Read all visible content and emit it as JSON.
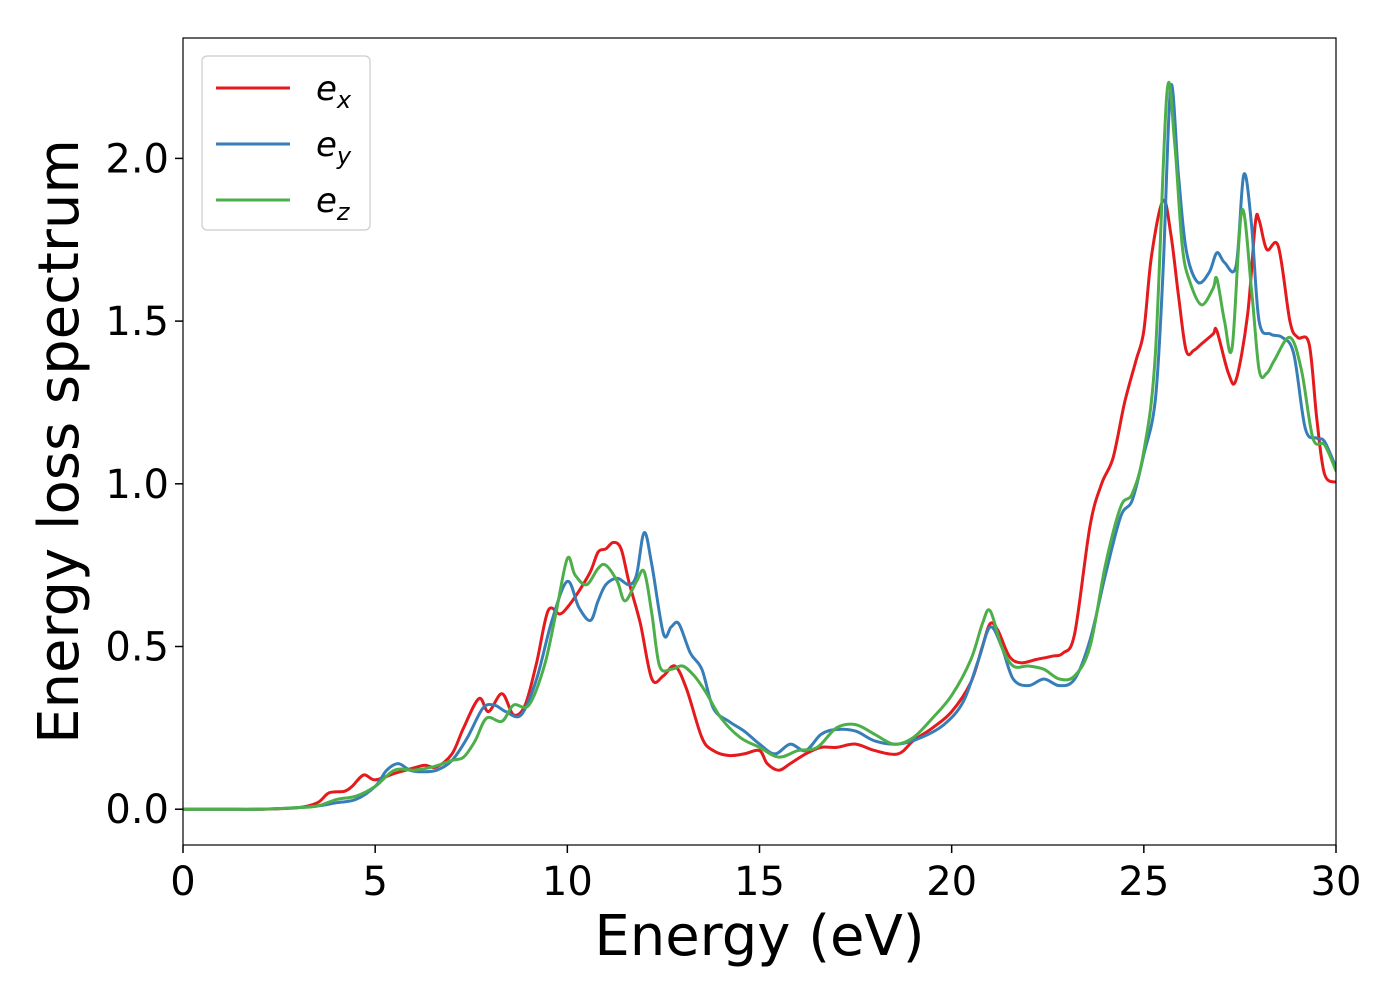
{
  "chart_data": {
    "type": "line",
    "xlabel": "Energy (eV)",
    "ylabel": "Energy loss spectrum",
    "xlim": [
      0,
      30
    ],
    "ylim": [
      -0.11,
      2.37
    ],
    "xticks": [
      0,
      5,
      10,
      15,
      20,
      25,
      30
    ],
    "xtick_labels": [
      "0",
      "5",
      "10",
      "15",
      "20",
      "25",
      "30"
    ],
    "yticks": [
      0.0,
      0.5,
      1.0,
      1.5,
      2.0
    ],
    "ytick_labels": [
      "0.0",
      "0.5",
      "1.0",
      "1.5",
      "2.0"
    ],
    "grid": false,
    "legend_position": "top-left",
    "series": [
      {
        "name": "e_x",
        "label_base": "e",
        "label_sub": "x",
        "color": "#e41a1c",
        "x": [
          0,
          1,
          2,
          3,
          3.5,
          3.8,
          4.2,
          4.4,
          4.7,
          5.0,
          5.5,
          5.8,
          6.1,
          6.3,
          6.6,
          7.0,
          7.3,
          7.7,
          7.95,
          8.3,
          8.6,
          8.9,
          9.2,
          9.5,
          9.8,
          10.0,
          10.3,
          10.6,
          10.8,
          11.0,
          11.2,
          11.4,
          11.6,
          11.9,
          12.2,
          12.5,
          12.8,
          13.1,
          13.5,
          13.8,
          14.2,
          14.6,
          15.0,
          15.2,
          15.5,
          15.8,
          16.2,
          16.6,
          17.0,
          17.5,
          18.0,
          18.6,
          19.0,
          19.5,
          20.0,
          20.5,
          20.8,
          21.0,
          21.2,
          21.5,
          21.8,
          22.2,
          22.6,
          22.9,
          23.2,
          23.6,
          23.9,
          24.2,
          24.5,
          24.8,
          25.0,
          25.2,
          25.5,
          25.7,
          25.9,
          26.1,
          26.3,
          26.5,
          26.8,
          26.9,
          27.2,
          27.4,
          27.7,
          27.9,
          28.0,
          28.2,
          28.5,
          28.8,
          29.0,
          29.3,
          29.5,
          29.7,
          30.0
        ],
        "y": [
          0.0,
          0.0,
          0.0,
          0.005,
          0.02,
          0.05,
          0.055,
          0.07,
          0.105,
          0.09,
          0.11,
          0.12,
          0.13,
          0.135,
          0.13,
          0.17,
          0.25,
          0.34,
          0.3,
          0.355,
          0.29,
          0.32,
          0.45,
          0.61,
          0.6,
          0.62,
          0.67,
          0.73,
          0.79,
          0.8,
          0.82,
          0.8,
          0.7,
          0.57,
          0.4,
          0.41,
          0.44,
          0.37,
          0.22,
          0.18,
          0.165,
          0.17,
          0.18,
          0.14,
          0.12,
          0.14,
          0.17,
          0.19,
          0.19,
          0.2,
          0.18,
          0.17,
          0.21,
          0.25,
          0.3,
          0.39,
          0.5,
          0.57,
          0.55,
          0.47,
          0.45,
          0.46,
          0.47,
          0.48,
          0.54,
          0.87,
          1.0,
          1.08,
          1.25,
          1.38,
          1.47,
          1.7,
          1.87,
          1.77,
          1.58,
          1.41,
          1.41,
          1.43,
          1.46,
          1.47,
          1.34,
          1.32,
          1.52,
          1.8,
          1.81,
          1.72,
          1.73,
          1.5,
          1.45,
          1.43,
          1.2,
          1.03,
          1.005
        ]
      },
      {
        "name": "e_y",
        "label_base": "e",
        "label_sub": "y",
        "color": "#377eb8",
        "x": [
          0,
          1,
          2,
          3,
          3.5,
          4.0,
          4.5,
          5.0,
          5.3,
          5.6,
          5.9,
          6.2,
          6.6,
          7.0,
          7.4,
          7.8,
          8.1,
          8.4,
          8.8,
          9.2,
          9.6,
          10.0,
          10.3,
          10.6,
          10.8,
          11.0,
          11.3,
          11.6,
          11.8,
          12.0,
          12.2,
          12.5,
          12.7,
          12.9,
          13.2,
          13.5,
          13.8,
          14.2,
          14.6,
          15.0,
          15.4,
          15.8,
          16.2,
          16.6,
          17.0,
          17.5,
          18.0,
          18.6,
          19.2,
          19.8,
          20.3,
          20.7,
          21.0,
          21.3,
          21.6,
          22.0,
          22.4,
          22.8,
          23.2,
          23.6,
          24.0,
          24.4,
          24.7,
          25.0,
          25.3,
          25.5,
          25.7,
          25.9,
          26.1,
          26.4,
          26.7,
          26.9,
          27.1,
          27.4,
          27.6,
          27.8,
          28.0,
          28.3,
          28.6,
          28.9,
          29.2,
          29.5,
          29.7,
          30.0
        ],
        "y": [
          0.0,
          0.0,
          0.0,
          0.005,
          0.01,
          0.02,
          0.03,
          0.07,
          0.12,
          0.14,
          0.12,
          0.115,
          0.12,
          0.15,
          0.22,
          0.31,
          0.32,
          0.3,
          0.29,
          0.4,
          0.58,
          0.7,
          0.62,
          0.58,
          0.64,
          0.69,
          0.71,
          0.69,
          0.72,
          0.85,
          0.75,
          0.54,
          0.56,
          0.57,
          0.48,
          0.43,
          0.31,
          0.27,
          0.24,
          0.2,
          0.17,
          0.2,
          0.18,
          0.23,
          0.245,
          0.24,
          0.21,
          0.2,
          0.22,
          0.26,
          0.33,
          0.46,
          0.56,
          0.5,
          0.4,
          0.38,
          0.4,
          0.38,
          0.4,
          0.52,
          0.72,
          0.9,
          0.95,
          1.09,
          1.26,
          1.65,
          2.22,
          1.95,
          1.72,
          1.62,
          1.65,
          1.71,
          1.68,
          1.67,
          1.95,
          1.8,
          1.5,
          1.46,
          1.45,
          1.4,
          1.17,
          1.14,
          1.13,
          1.05
        ]
      },
      {
        "name": "e_z",
        "label_base": "e",
        "label_sub": "z",
        "color": "#4daf4a",
        "x": [
          0,
          1,
          2,
          3,
          3.5,
          4.0,
          4.5,
          5.0,
          5.5,
          6.0,
          6.5,
          7.0,
          7.3,
          7.6,
          7.9,
          8.3,
          8.6,
          9.0,
          9.4,
          9.7,
          10.0,
          10.2,
          10.5,
          10.8,
          11.0,
          11.3,
          11.5,
          11.8,
          12.0,
          12.2,
          12.4,
          12.7,
          13.0,
          13.3,
          13.6,
          14.0,
          14.5,
          15.0,
          15.5,
          16.0,
          16.5,
          17.0,
          17.5,
          18.0,
          18.5,
          19.0,
          19.5,
          20.0,
          20.5,
          20.8,
          21.0,
          21.3,
          21.6,
          22.0,
          22.4,
          22.8,
          23.2,
          23.6,
          24.0,
          24.4,
          24.7,
          25.0,
          25.3,
          25.6,
          25.8,
          26.0,
          26.2,
          26.5,
          26.8,
          26.9,
          27.1,
          27.3,
          27.55,
          27.8,
          28.0,
          28.2,
          28.4,
          28.8,
          29.1,
          29.4,
          29.7,
          30.0
        ],
        "y": [
          0.0,
          0.0,
          0.0,
          0.005,
          0.01,
          0.03,
          0.04,
          0.07,
          0.12,
          0.12,
          0.13,
          0.15,
          0.16,
          0.21,
          0.28,
          0.27,
          0.32,
          0.32,
          0.44,
          0.6,
          0.77,
          0.72,
          0.69,
          0.74,
          0.75,
          0.7,
          0.64,
          0.7,
          0.73,
          0.6,
          0.44,
          0.43,
          0.44,
          0.41,
          0.36,
          0.28,
          0.22,
          0.19,
          0.16,
          0.18,
          0.19,
          0.25,
          0.26,
          0.23,
          0.2,
          0.22,
          0.28,
          0.35,
          0.46,
          0.57,
          0.61,
          0.5,
          0.44,
          0.44,
          0.43,
          0.4,
          0.41,
          0.5,
          0.75,
          0.93,
          0.97,
          1.1,
          1.4,
          2.2,
          2.05,
          1.73,
          1.62,
          1.55,
          1.6,
          1.63,
          1.5,
          1.42,
          1.84,
          1.6,
          1.35,
          1.34,
          1.38,
          1.45,
          1.35,
          1.14,
          1.12,
          1.04
        ]
      }
    ]
  }
}
